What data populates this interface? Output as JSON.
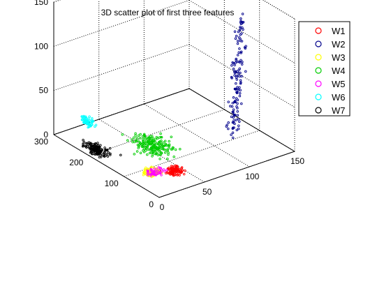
{
  "chart_data": {
    "type": "scatter",
    "dimensions": 3,
    "title": "3D scatter plot of first three features",
    "xlabel": "",
    "ylabel": "",
    "zlabel": "",
    "xlim": [
      0,
      150
    ],
    "ylim": [
      0,
      300
    ],
    "zlim": [
      0,
      150
    ],
    "x_ticks": [
      "0",
      "50",
      "100",
      "150"
    ],
    "y_ticks": [
      "0",
      "100",
      "200",
      "300"
    ],
    "z_ticks": [
      "0",
      "50",
      "100",
      "150"
    ],
    "grid": true,
    "legend_position": "top-right",
    "marker": "o",
    "series": [
      {
        "name": "W1",
        "color": "#ff0000",
        "center": [
          38,
          55,
          3
        ],
        "spread": [
          8,
          16,
          2
        ],
        "count": 90
      },
      {
        "name": "W2",
        "color": "#00008b",
        "center": [
          120,
          90,
          85
        ],
        "spread": [
          16,
          55,
          30
        ],
        "count": 130
      },
      {
        "name": "W3",
        "color": "#ffff00",
        "center": [
          22,
          80,
          2
        ],
        "spread": [
          8,
          15,
          2
        ],
        "count": 70
      },
      {
        "name": "W4",
        "color": "#00cc00",
        "center": [
          50,
          150,
          5
        ],
        "spread": [
          16,
          45,
          4
        ],
        "count": 200
      },
      {
        "name": "W5",
        "color": "#ff00ff",
        "center": [
          24,
          70,
          3
        ],
        "spread": [
          12,
          15,
          3
        ],
        "count": 45
      },
      {
        "name": "W6",
        "color": "#00ffff",
        "center": [
          10,
          230,
          25
        ],
        "spread": [
          4,
          18,
          8
        ],
        "count": 60
      },
      {
        "name": "W7",
        "color": "#000000",
        "center": [
          10,
          205,
          2
        ],
        "spread": [
          8,
          30,
          2
        ],
        "count": 140
      }
    ]
  }
}
